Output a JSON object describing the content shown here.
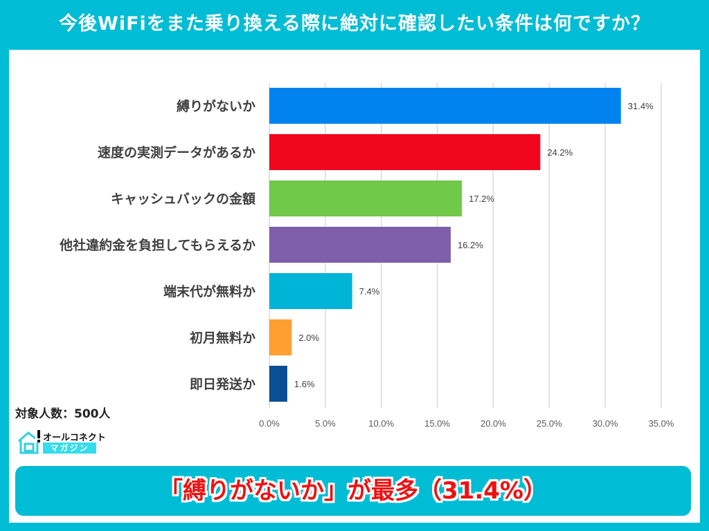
{
  "title": "今後WiFiをまた乗り換える際に絶対に確認したい条件は何ですか？",
  "sample_note": "対象人数：500人",
  "logo": {
    "line1": "オールコネクト",
    "line2": "マガジン"
  },
  "conclusion": "「縛りがないか」が最多（31.4%）",
  "colors": {
    "frame": "#00BCD4",
    "conclusion_text": "#F01010",
    "grid": "#D9D9D9"
  },
  "chart_data": {
    "type": "bar",
    "orientation": "horizontal",
    "categories": [
      "縛りがないか",
      "速度の実測データがあるか",
      "キャッシュバックの金額",
      "他社違約金を負担してもらえるか",
      "端末代が無料か",
      "初月無料か",
      "即日発送か"
    ],
    "values": [
      31.4,
      24.2,
      17.2,
      16.2,
      7.4,
      2.0,
      1.6
    ],
    "data_labels": [
      "31.4%",
      "24.2%",
      "17.2%",
      "16.2%",
      "7.4%",
      "2.0%",
      "1.6%"
    ],
    "bar_colors": [
      "#0083EF",
      "#F0051C",
      "#71C94A",
      "#7F5FAA",
      "#00B4D8",
      "#FF9F2F",
      "#0A4E94"
    ],
    "xlim": [
      0,
      35
    ],
    "xticks": [
      0,
      5,
      10,
      15,
      20,
      25,
      30,
      35
    ],
    "xtick_labels": [
      "0.0%",
      "5.0%",
      "10.0%",
      "15.0%",
      "20.0%",
      "25.0%",
      "30.0%",
      "35.0%"
    ],
    "grid": "vertical",
    "xlabel": "",
    "ylabel": ""
  }
}
